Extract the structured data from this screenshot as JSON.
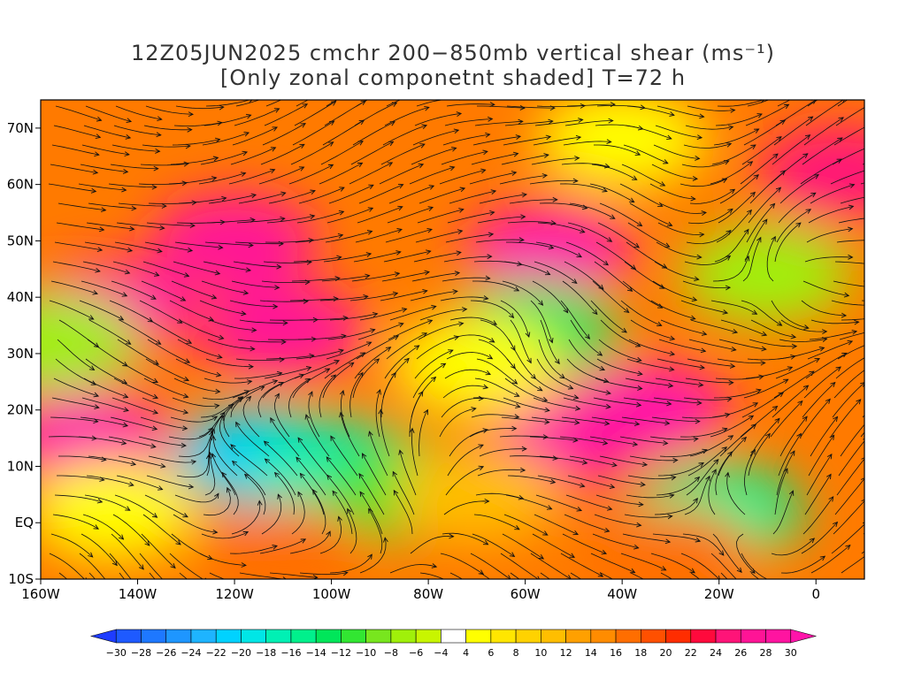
{
  "title": {
    "line1": "12Z05JUN2025 cmchr 200−850mb vertical shear (ms⁻¹)",
    "line2": "[Only zonal componetnt shaded] T=72 h"
  },
  "map": {
    "lon_range": [
      -160,
      10
    ],
    "lat_range": [
      -10,
      75
    ],
    "lat_ticks": [
      {
        "value": 70,
        "label": "70N"
      },
      {
        "value": 60,
        "label": "60N"
      },
      {
        "value": 50,
        "label": "50N"
      },
      {
        "value": 40,
        "label": "40N"
      },
      {
        "value": 30,
        "label": "30N"
      },
      {
        "value": 20,
        "label": "20N"
      },
      {
        "value": 10,
        "label": "10N"
      },
      {
        "value": 0,
        "label": "EQ"
      },
      {
        "value": -10,
        "label": "10S"
      }
    ],
    "lon_ticks": [
      {
        "value": -160,
        "label": "160W"
      },
      {
        "value": -140,
        "label": "140W"
      },
      {
        "value": -120,
        "label": "120W"
      },
      {
        "value": -100,
        "label": "100W"
      },
      {
        "value": -80,
        "label": "80W"
      },
      {
        "value": -60,
        "label": "60W"
      },
      {
        "value": -40,
        "label": "40W"
      },
      {
        "value": -20,
        "label": "20W"
      },
      {
        "value": 0,
        "label": "0"
      }
    ],
    "shear_regions": [
      {
        "lon": -150,
        "lat": 15,
        "u": 30
      },
      {
        "lon": -145,
        "lat": 38,
        "u": 28
      },
      {
        "lon": -120,
        "lat": 50,
        "u": 27
      },
      {
        "lon": -110,
        "lat": 34,
        "u": 26
      },
      {
        "lon": -55,
        "lat": 48,
        "u": 30
      },
      {
        "lon": -35,
        "lat": 20,
        "u": 30
      },
      {
        "lon": -50,
        "lat": 15,
        "u": 28
      },
      {
        "lon": 5,
        "lat": 62,
        "u": 24
      },
      {
        "lon": -115,
        "lat": 12,
        "u": -22
      },
      {
        "lon": -100,
        "lat": 10,
        "u": -18
      },
      {
        "lon": -85,
        "lat": 6,
        "u": -12
      },
      {
        "lon": -58,
        "lat": 34,
        "u": -14
      },
      {
        "lon": -20,
        "lat": 2,
        "u": -16
      },
      {
        "lon": -10,
        "lat": 44,
        "u": -8
      },
      {
        "lon": -157,
        "lat": 32,
        "u": -8
      },
      {
        "lon": -40,
        "lat": 68,
        "u": 4
      },
      {
        "lon": -70,
        "lat": 28,
        "u": 4
      },
      {
        "lon": -145,
        "lat": 2,
        "u": 4
      },
      {
        "lon": -70,
        "lat": 5,
        "u": 10
      },
      {
        "lon": -30,
        "lat": -6,
        "u": 16
      },
      {
        "lon": -110,
        "lat": -5,
        "u": 16
      }
    ]
  },
  "colorbar": {
    "labels": [
      "−30",
      "−28",
      "−26",
      "−24",
      "−22",
      "−20",
      "−18",
      "−16",
      "−14",
      "−12",
      "−10",
      "−8",
      "−6",
      "−4",
      "4",
      "6",
      "8",
      "10",
      "12",
      "14",
      "16",
      "18",
      "20",
      "22",
      "24",
      "26",
      "28",
      "30"
    ],
    "colors": [
      "#1e3cff",
      "#1e5aff",
      "#1e78ff",
      "#1e96ff",
      "#1eb4ff",
      "#00d2ff",
      "#00e6e6",
      "#00f0b4",
      "#00f08c",
      "#00e65a",
      "#32e632",
      "#78e61e",
      "#a0f00a",
      "#c8f500",
      "#ffffff",
      "#ffff00",
      "#ffe600",
      "#ffd200",
      "#ffbe00",
      "#ffa000",
      "#ff8c00",
      "#ff6e00",
      "#ff5000",
      "#ff2d00",
      "#ff0a3c",
      "#ff1478",
      "#ff1496",
      "#ff14a0",
      "#ff14aa"
    ]
  }
}
